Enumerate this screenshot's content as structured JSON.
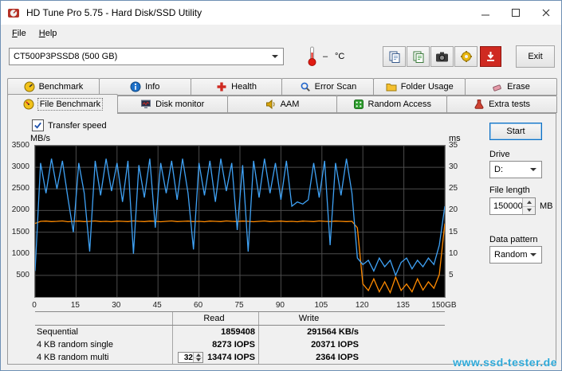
{
  "window": {
    "title": "HD Tune Pro 5.75 - Hard Disk/SSD Utility"
  },
  "menu": {
    "items": [
      {
        "label": "File"
      },
      {
        "label": "Help"
      }
    ]
  },
  "toolbar": {
    "device_selector": "CT500P3PSSD8 (500 GB)",
    "temperature_value": "–",
    "temperature_unit": "°C",
    "exit_label": "Exit",
    "icons": [
      "copy-icon",
      "copy-text-icon",
      "camera-icon",
      "options-icon",
      "download-icon"
    ]
  },
  "tabs": {
    "row1": [
      {
        "label": "Benchmark",
        "icon": "benchmark-icon"
      },
      {
        "label": "Info",
        "icon": "info-icon"
      },
      {
        "label": "Health",
        "icon": "health-icon"
      },
      {
        "label": "Error Scan",
        "icon": "error-scan-icon"
      },
      {
        "label": "Folder Usage",
        "icon": "folder-usage-icon"
      },
      {
        "label": "Erase",
        "icon": "erase-icon"
      }
    ],
    "row2": [
      {
        "label": "File Benchmark",
        "icon": "file-benchmark-icon",
        "active": true
      },
      {
        "label": "Disk monitor",
        "icon": "disk-monitor-icon"
      },
      {
        "label": "AAM",
        "icon": "aam-icon"
      },
      {
        "label": "Random Access",
        "icon": "random-access-icon"
      },
      {
        "label": "Extra tests",
        "icon": "extra-tests-icon"
      }
    ]
  },
  "benchmark_panel": {
    "transfer_speed_label": "Transfer speed",
    "transfer_speed_checked": true,
    "start_button": "Start",
    "drive_label": "Drive",
    "drive_value": "D:",
    "file_length_label": "File length",
    "file_length_value": "150000",
    "file_length_unit": "MB",
    "data_pattern_label": "Data pattern",
    "data_pattern_value": "Random",
    "results_table": {
      "read_header": "Read",
      "write_header": "Write",
      "rows": [
        {
          "label": "Sequential",
          "read": "1859408",
          "write": "291564 KB/s"
        },
        {
          "label": "4 KB random single",
          "read": "8273 IOPS",
          "write": "20371 IOPS"
        },
        {
          "label": "4 KB random multi",
          "threads": "32",
          "read": "13474 IOPS",
          "write": "2364 IOPS"
        }
      ]
    }
  },
  "chart_data": {
    "type": "line",
    "title": "File benchmark transfer speed over test file position",
    "x_unit": "GB",
    "x_max": 150,
    "x_ticks": [
      0,
      15,
      30,
      45,
      60,
      75,
      90,
      105,
      120,
      135,
      150
    ],
    "x_tick_labels": [
      "0",
      "15",
      "30",
      "45",
      "60",
      "75",
      "90",
      "105",
      "120",
      "135",
      "150GB"
    ],
    "y_left": {
      "label": "MB/s",
      "min": 0,
      "max": 3500,
      "ticks": [
        3500,
        3000,
        2500,
        2000,
        1500,
        1000,
        500
      ]
    },
    "y_right": {
      "label": "ms",
      "min": 0,
      "max": 35,
      "ticks": [
        35,
        30,
        25,
        20,
        15,
        10,
        5
      ]
    },
    "background": "#000000",
    "grid_color": "#4c4c4c",
    "grid": true,
    "legend": "none",
    "x": [
      0,
      2,
      4,
      6,
      8,
      10,
      12,
      14,
      16,
      18,
      20,
      22,
      24,
      26,
      28,
      30,
      32,
      34,
      36,
      38,
      40,
      42,
      44,
      46,
      48,
      50,
      52,
      54,
      56,
      58,
      60,
      62,
      64,
      66,
      68,
      70,
      72,
      74,
      76,
      78,
      80,
      82,
      84,
      86,
      88,
      90,
      92,
      94,
      96,
      98,
      100,
      102,
      104,
      106,
      108,
      110,
      112,
      114,
      116,
      118,
      120,
      122,
      124,
      126,
      128,
      130,
      132,
      134,
      136,
      138,
      140,
      142,
      144,
      146,
      148,
      150
    ],
    "series": [
      {
        "name": "transfer-speed-orange",
        "color": "#ff8a00",
        "values": [
          1700,
          1750,
          1755,
          1745,
          1750,
          1760,
          1740,
          1750,
          1755,
          1745,
          1750,
          1760,
          1745,
          1750,
          1740,
          1755,
          1750,
          1745,
          1760,
          1750,
          1745,
          1755,
          1750,
          1740,
          1750,
          1760,
          1745,
          1750,
          1755,
          1745,
          1750,
          1740,
          1755,
          1750,
          1745,
          1760,
          1750,
          1745,
          1755,
          1750,
          1740,
          1750,
          1760,
          1745,
          1750,
          1755,
          1745,
          1750,
          1740,
          1755,
          1750,
          1745,
          1760,
          1750,
          1745,
          1755,
          1750,
          1745,
          1750,
          1600,
          300,
          150,
          420,
          120,
          350,
          100,
          460,
          150,
          300,
          120,
          420,
          160,
          350,
          200,
          520,
          1700
        ]
      },
      {
        "name": "transfer-speed-blue",
        "color": "#3fa2f5",
        "values": [
          600,
          3100,
          2400,
          3200,
          2500,
          3150,
          2300,
          1500,
          3100,
          2400,
          1050,
          3150,
          2350,
          3200,
          2450,
          3100,
          2200,
          3150,
          1000,
          3050,
          2300,
          3200,
          1600,
          3100,
          2400,
          3150,
          2250,
          3200,
          2400,
          1100,
          3100,
          2350,
          3150,
          2200,
          3200,
          2450,
          3100,
          1550,
          3050,
          1050,
          3150,
          2300,
          3200,
          2400,
          3100,
          2250,
          3150,
          2100,
          2200,
          2150,
          2250,
          3100,
          2300,
          3150,
          1200,
          3100,
          2350,
          3200,
          2400,
          900,
          750,
          850,
          600,
          900,
          700,
          850,
          500,
          800,
          900,
          650,
          850,
          700,
          900,
          750,
          1200,
          2100
        ]
      }
    ]
  },
  "watermark": {
    "text": "www.ssd-tester.de",
    "color": "#2fa9d8"
  }
}
